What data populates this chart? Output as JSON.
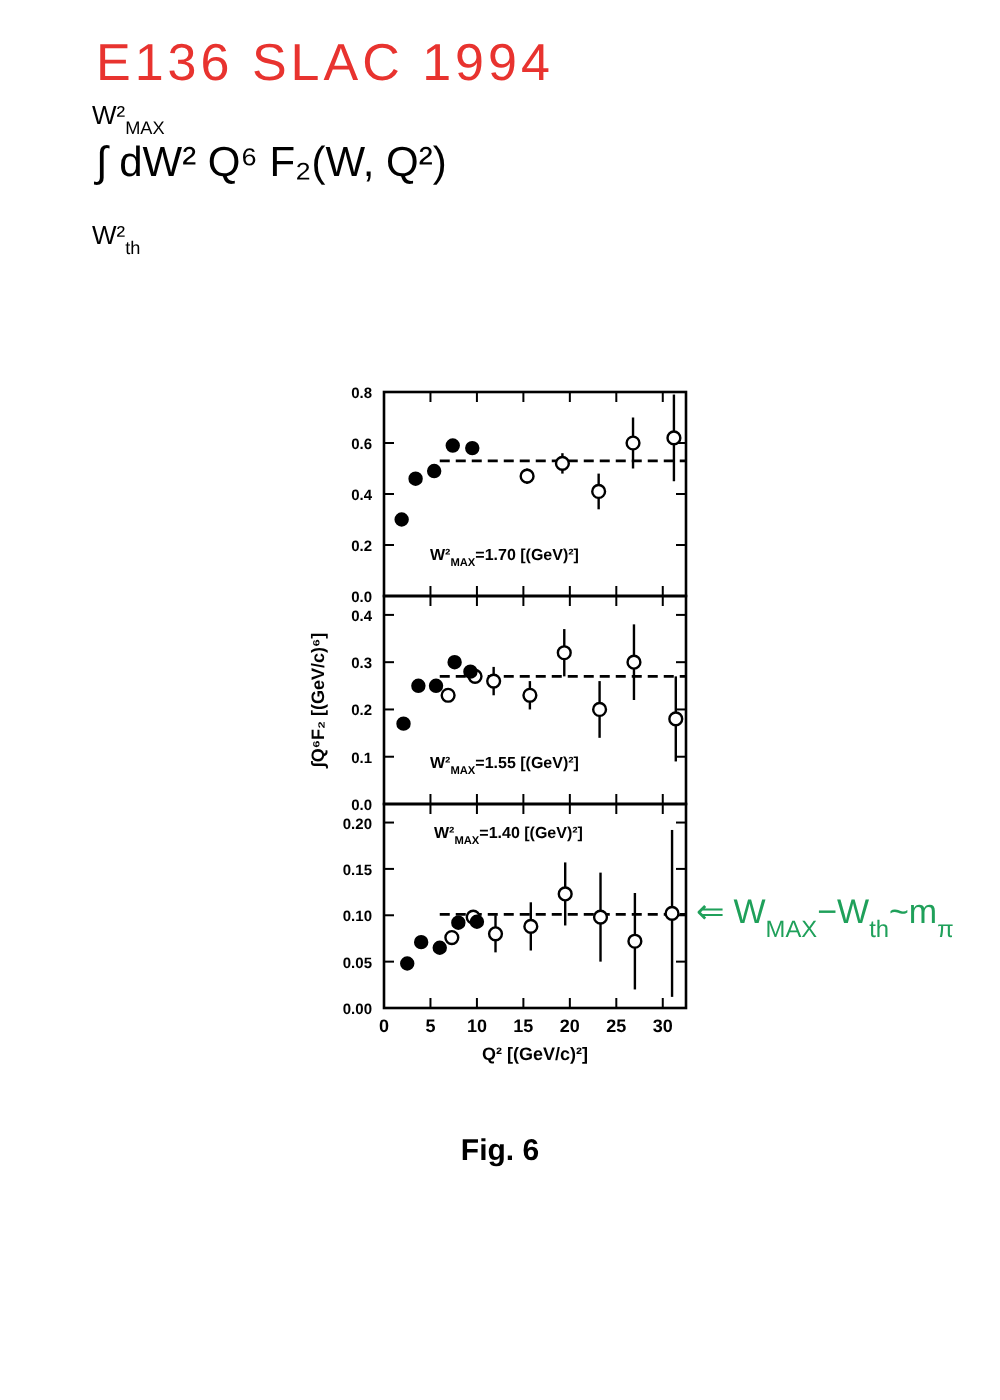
{
  "chart_data": [
    {
      "type": "scatter",
      "title": "E136 SLAC 1994",
      "subtitle": "∫ dW² Q⁶ F₂(W, Q²)",
      "annotations": [
        "W²$_{MAX}$=1.70 [(GeV)²]",
        "W²$_{MAX}$",
        "W²$_{th}$"
      ],
      "xlim": [
        0,
        32.5
      ],
      "xticks": [
        0,
        5,
        10,
        15,
        20,
        25,
        30
      ],
      "ylim": [
        0,
        0.8
      ],
      "yticks": [
        {
          "value": 0,
          "label": "0.0"
        },
        {
          "value": 0.2,
          "label": "0.2"
        },
        {
          "value": 0.4,
          "label": "0.4"
        },
        {
          "value": 0.6,
          "label": "0.6"
        },
        {
          "value": 0.8,
          "label": "0.8"
        }
      ],
      "tick_labels": "y",
      "marker": "circle",
      "series": [
        {
          "color": "#000000",
          "x": [
            1.9,
            3.4,
            5.4,
            7.4,
            9.5
          ],
          "values": [
            0.3,
            0.46,
            0.49,
            0.59,
            0.58
          ]
        },
        {
          "color": "#000000",
          "x": [
            15.4,
            19.2,
            23.1,
            26.8,
            31.2
          ],
          "values": [
            0.47,
            0.52,
            0.41,
            0.6,
            0.62
          ],
          "errors": [
            0.03,
            0.04,
            0.07,
            0.1,
            0.17
          ]
        },
        {
          "type": "line",
          "marker": "none",
          "color": "#000000",
          "line_style": "dashed",
          "x": [
            6,
            32.5
          ],
          "values": [
            0.53,
            0.53
          ]
        }
      ]
    },
    {
      "type": "scatter",
      "ylabel": "∫Q⁶F₂ [(GeV/c)⁶]",
      "annotations": [
        "W²$_{MAX}$=1.55 [(GeV)²]"
      ],
      "xlim": [
        0,
        32.5
      ],
      "xticks": [
        0,
        5,
        10,
        15,
        20,
        25,
        30
      ],
      "ylim": [
        0,
        0.44
      ],
      "yticks": [
        {
          "value": 0,
          "label": "0.0"
        },
        0.1,
        0.2,
        0.3,
        0.4
      ],
      "tick_labels": "y",
      "marker": "circle",
      "series": [
        {
          "color": "#000000",
          "x": [
            2.1,
            3.7,
            5.6,
            7.6,
            9.3
          ],
          "values": [
            0.17,
            0.25,
            0.25,
            0.3,
            0.28
          ]
        },
        {
          "color": "#000000",
          "x": [
            6.9,
            9.8,
            11.8,
            15.7,
            19.4,
            23.2,
            26.9,
            31.4
          ],
          "values": [
            0.23,
            0.27,
            0.26,
            0.23,
            0.32,
            0.2,
            0.3,
            0.18
          ],
          "errors": [
            null,
            null,
            0.03,
            0.03,
            0.05,
            0.06,
            0.08,
            0.09
          ]
        },
        {
          "type": "line",
          "marker": "none",
          "color": "#000000",
          "line_style": "dashed",
          "x": [
            6,
            32.5
          ],
          "values": [
            0.27,
            0.27
          ]
        }
      ]
    },
    {
      "type": "scatter",
      "xlabel": "Q² [(GeV/c)²]",
      "annotations": [
        "W²$_{MAX}$=1.40 [(GeV)²]",
        {
          "text": "⇐ W$_{MAX}$−W$_{th}$~m$_{π}$",
          "x": 31,
          "y": 0.102
        },
        "Fig. 6"
      ],
      "xlim": [
        0,
        32.5
      ],
      "xticks": [
        0,
        5,
        10,
        15,
        20,
        25,
        30
      ],
      "ylim": [
        0,
        0.22
      ],
      "yticks": [
        {
          "value": 0,
          "label": "0.00"
        },
        {
          "value": 0.05,
          "label": "0.05"
        },
        {
          "value": 0.1,
          "label": "0.10"
        },
        {
          "value": 0.15,
          "label": "0.15"
        },
        {
          "value": 0.2,
          "label": "0.20"
        }
      ],
      "marker": "circle",
      "series": [
        {
          "color": "#000000",
          "x": [
            2.5,
            4,
            6,
            8,
            10
          ],
          "values": [
            0.048,
            0.071,
            0.065,
            0.092,
            0.093
          ]
        },
        {
          "color": "#000000",
          "x": [
            7.3,
            9.6,
            12,
            15.8,
            19.5,
            23.3,
            27,
            31
          ],
          "values": [
            0.076,
            0.098,
            0.08,
            0.088,
            0.123,
            0.098,
            0.072,
            0.102
          ],
          "errors": [
            null,
            null,
            0.02,
            0.026,
            0.034,
            0.048,
            0.052,
            0.09
          ]
        },
        {
          "type": "line",
          "marker": "none",
          "color": "#000000",
          "line_style": "dashed",
          "x": [
            6,
            32.5
          ],
          "values": [
            0.101,
            0.101
          ]
        }
      ]
    }
  ]
}
